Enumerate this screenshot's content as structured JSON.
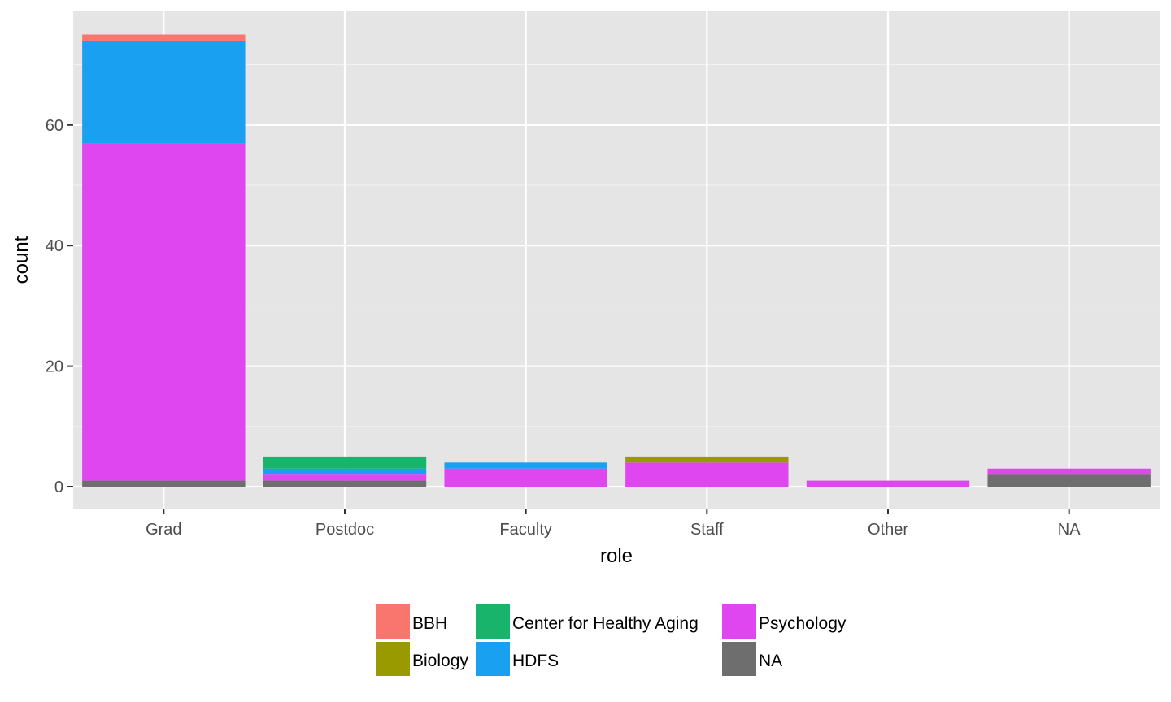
{
  "chart_data": {
    "type": "bar",
    "stacked": true,
    "xlabel": "role",
    "ylabel": "count",
    "categories": [
      "Grad",
      "Postdoc",
      "Faculty",
      "Staff",
      "Other",
      "NA"
    ],
    "yticks": [
      "0",
      "20",
      "40",
      "60"
    ],
    "ylim": [
      0,
      77.5
    ],
    "grid": true,
    "legend_position": "bottom",
    "series": [
      {
        "name": "BBH",
        "color": "#F8766D",
        "values": [
          1,
          0,
          0,
          0,
          0,
          0
        ]
      },
      {
        "name": "Biology",
        "color": "#999900",
        "values": [
          0,
          0,
          0,
          1,
          0,
          0
        ]
      },
      {
        "name": "Center for Healthy Aging",
        "color": "#19B46C",
        "values": [
          0,
          2,
          0,
          0,
          0,
          0
        ]
      },
      {
        "name": "HDFS",
        "color": "#1AA0F0",
        "values": [
          17,
          1,
          1,
          0,
          0,
          0
        ]
      },
      {
        "name": "Psychology",
        "color": "#E046F0",
        "values": [
          56,
          1,
          3,
          4,
          1,
          1
        ]
      },
      {
        "name": "NA",
        "color": "#6E6E6E",
        "values": [
          1,
          1,
          0,
          0,
          0,
          2
        ]
      }
    ],
    "legend_layout": [
      [
        "BBH",
        "Biology"
      ],
      [
        "Center for Healthy Aging",
        "HDFS"
      ],
      [
        "Psychology",
        "NA"
      ]
    ]
  }
}
